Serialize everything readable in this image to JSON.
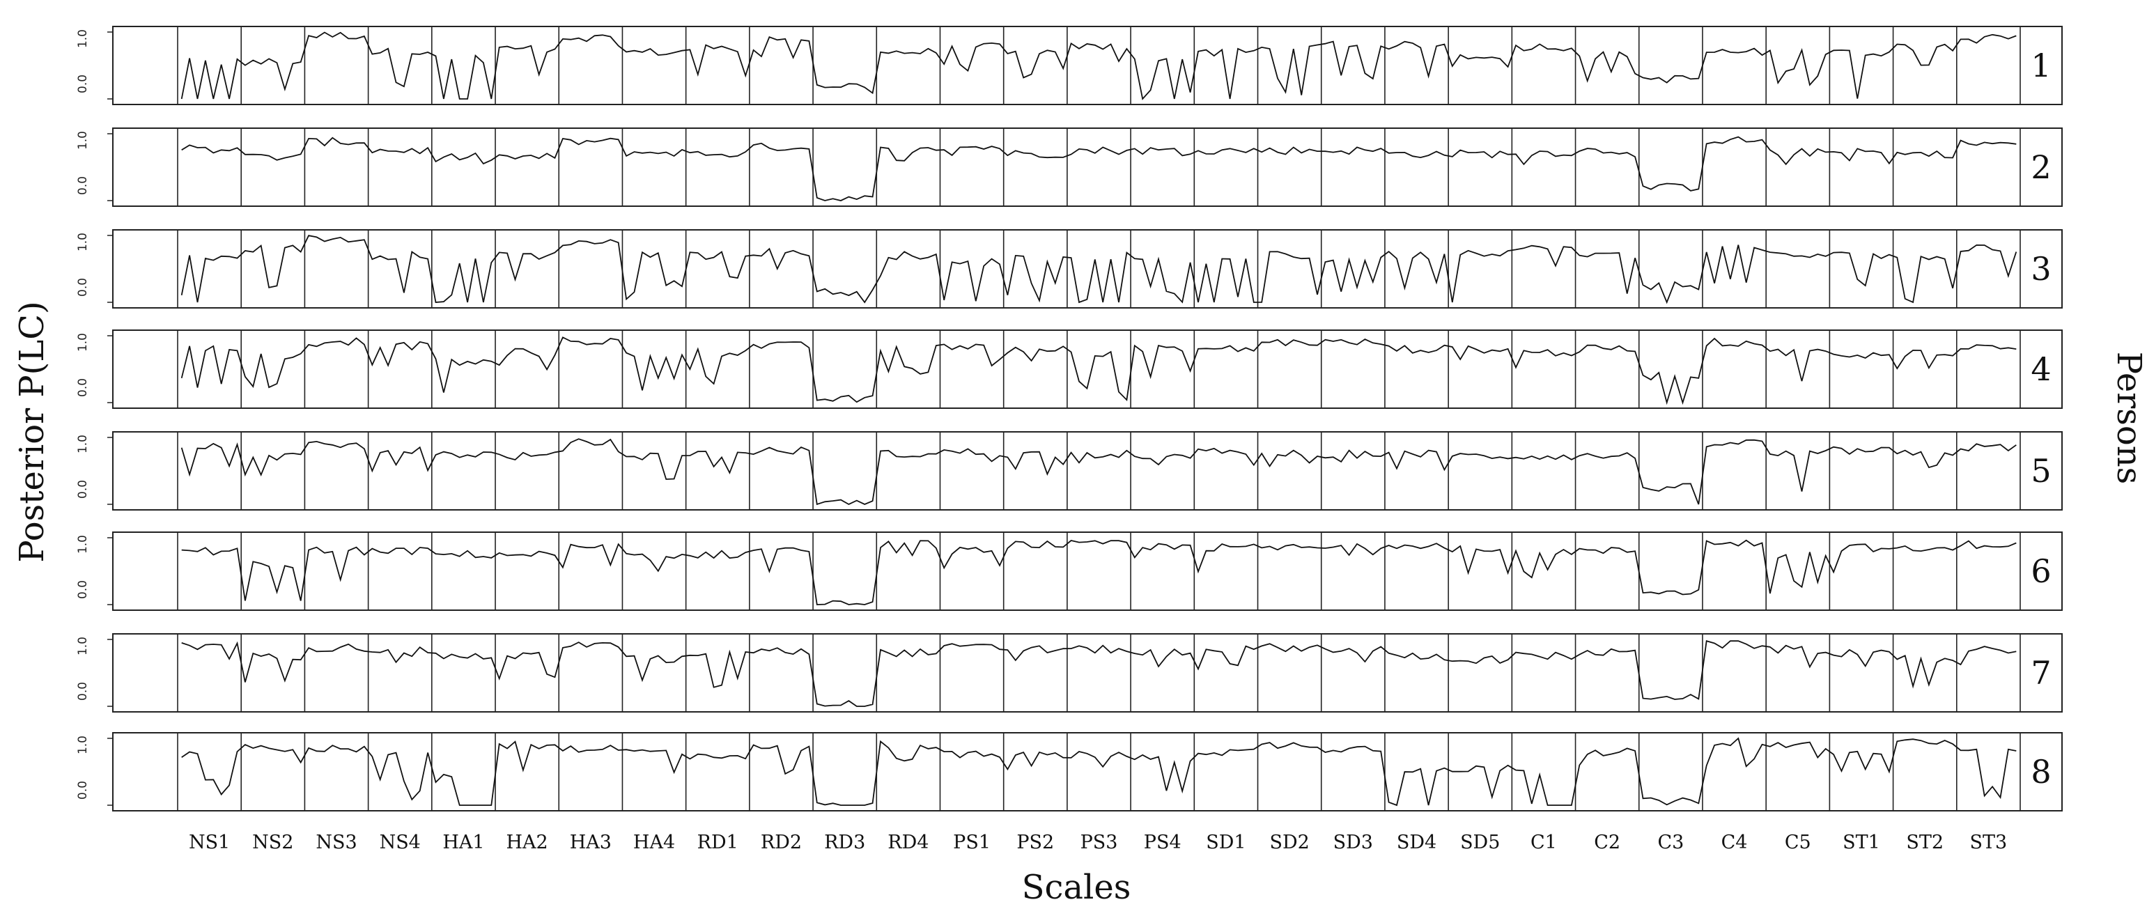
{
  "chart_data": {
    "type": "line",
    "ylabel": "Posterior P(LC)",
    "xlabel": "Scales",
    "right_label": "Persons",
    "ylim": [
      0,
      1
    ],
    "y_tick_labels": [
      "0.0",
      "1.0"
    ],
    "scales": [
      "NS1",
      "NS2",
      "NS3",
      "NS4",
      "HA1",
      "HA2",
      "HA3",
      "HA4",
      "RD1",
      "RD2",
      "RD3",
      "RD4",
      "PS1",
      "PS2",
      "PS3",
      "PS4",
      "SD1",
      "SD2",
      "SD3",
      "SD4",
      "SD5",
      "C1",
      "C2",
      "C3",
      "C4",
      "C5",
      "ST1",
      "ST2",
      "ST3"
    ],
    "person_labels": [
      "1",
      "2",
      "3",
      "4",
      "5",
      "6",
      "7",
      "8"
    ],
    "block_levels": [
      [
        0.55,
        0.55,
        0.95,
        0.7,
        0.6,
        0.75,
        0.92,
        0.7,
        0.75,
        0.9,
        0.2,
        0.7,
        0.8,
        0.7,
        0.78,
        0.6,
        0.7,
        0.75,
        0.8,
        0.8,
        0.65,
        0.78,
        0.65,
        0.3,
        0.7,
        0.7,
        0.7,
        0.78,
        0.95
      ],
      [
        0.78,
        0.65,
        0.88,
        0.75,
        0.65,
        0.65,
        0.88,
        0.72,
        0.7,
        0.8,
        0.03,
        0.75,
        0.8,
        0.7,
        0.75,
        0.75,
        0.75,
        0.75,
        0.75,
        0.7,
        0.7,
        0.72,
        0.75,
        0.2,
        0.9,
        0.72,
        0.72,
        0.7,
        0.85
      ],
      [
        0.65,
        0.8,
        0.95,
        0.7,
        0.6,
        0.7,
        0.9,
        0.7,
        0.7,
        0.75,
        0.15,
        0.7,
        0.6,
        0.65,
        0.7,
        0.65,
        0.6,
        0.7,
        0.65,
        0.7,
        0.75,
        0.8,
        0.7,
        0.25,
        0.8,
        0.7,
        0.7,
        0.7,
        0.8
      ],
      [
        0.8,
        0.7,
        0.92,
        0.85,
        0.6,
        0.75,
        0.92,
        0.7,
        0.75,
        0.85,
        0.05,
        0.8,
        0.85,
        0.8,
        0.75,
        0.8,
        0.8,
        0.9,
        0.9,
        0.8,
        0.8,
        0.75,
        0.8,
        0.4,
        0.9,
        0.75,
        0.7,
        0.75,
        0.85
      ],
      [
        0.85,
        0.72,
        0.88,
        0.8,
        0.75,
        0.72,
        0.92,
        0.72,
        0.75,
        0.8,
        0.02,
        0.75,
        0.78,
        0.75,
        0.75,
        0.7,
        0.78,
        0.75,
        0.75,
        0.75,
        0.72,
        0.72,
        0.72,
        0.25,
        0.92,
        0.75,
        0.8,
        0.75,
        0.85
      ],
      [
        0.8,
        0.6,
        0.8,
        0.8,
        0.75,
        0.75,
        0.85,
        0.72,
        0.75,
        0.85,
        0.0,
        0.9,
        0.8,
        0.9,
        0.9,
        0.85,
        0.85,
        0.85,
        0.85,
        0.9,
        0.85,
        0.8,
        0.8,
        0.2,
        0.92,
        0.75,
        0.85,
        0.82,
        0.9
      ],
      [
        0.9,
        0.75,
        0.88,
        0.85,
        0.75,
        0.75,
        0.92,
        0.7,
        0.8,
        0.82,
        0.03,
        0.8,
        0.88,
        0.85,
        0.85,
        0.8,
        0.85,
        0.88,
        0.85,
        0.75,
        0.7,
        0.75,
        0.8,
        0.15,
        0.92,
        0.85,
        0.8,
        0.7,
        0.85
      ],
      [
        0.75,
        0.85,
        0.85,
        0.75,
        0.4,
        0.9,
        0.85,
        0.8,
        0.75,
        0.85,
        0.0,
        0.9,
        0.75,
        0.75,
        0.75,
        0.7,
        0.8,
        0.9,
        0.85,
        0.55,
        0.55,
        0.5,
        0.8,
        0.05,
        0.95,
        0.9,
        0.75,
        0.95,
        0.8
      ]
    ],
    "block_dip": [
      [
        0.8,
        0.7,
        0.2,
        0.8,
        0.9,
        0.4,
        0.2,
        0.6,
        0.5,
        0.3,
        0.2,
        0.5,
        0.4,
        0.4,
        0.4,
        0.9,
        0.9,
        0.7,
        0.5,
        0.5,
        0.2,
        0.3,
        0.4,
        0.3,
        0.8,
        0.5,
        0.8,
        0.4,
        0.2
      ],
      [
        0.1,
        0.1,
        0.1,
        0.2,
        0.1,
        0.2,
        0.1,
        0.1,
        0.1,
        0.1,
        0.0,
        0.2,
        0.2,
        0.3,
        0.1,
        0.1,
        0.1,
        0.1,
        0.1,
        0.2,
        0.1,
        0.2,
        0.1,
        0.1,
        0.1,
        0.2,
        0.2,
        0.1,
        0.1
      ],
      [
        0.9,
        0.6,
        0.2,
        0.7,
        0.8,
        0.5,
        0.3,
        0.7,
        0.6,
        0.4,
        0.3,
        0.4,
        0.8,
        0.7,
        0.8,
        0.7,
        0.9,
        0.7,
        0.6,
        0.5,
        0.8,
        0.3,
        0.6,
        0.4,
        0.6,
        0.5,
        0.7,
        0.8,
        0.7
      ],
      [
        0.6,
        0.5,
        0.1,
        0.5,
        0.7,
        0.3,
        0.1,
        0.6,
        0.5,
        0.2,
        0.1,
        0.4,
        0.3,
        0.3,
        0.8,
        0.6,
        0.2,
        0.1,
        0.1,
        0.3,
        0.3,
        0.4,
        0.3,
        0.8,
        0.2,
        0.6,
        0.2,
        0.3,
        0.2
      ],
      [
        0.5,
        0.3,
        0.1,
        0.4,
        0.3,
        0.3,
        0.2,
        0.4,
        0.3,
        0.3,
        0.0,
        0.3,
        0.2,
        0.3,
        0.2,
        0.2,
        0.2,
        0.2,
        0.2,
        0.3,
        0.3,
        0.3,
        0.2,
        0.6,
        0.1,
        0.6,
        0.2,
        0.3,
        0.2
      ],
      [
        0.1,
        0.6,
        0.6,
        0.3,
        0.2,
        0.3,
        0.3,
        0.3,
        0.3,
        0.4,
        0.0,
        0.2,
        0.3,
        0.1,
        0.1,
        0.2,
        0.4,
        0.3,
        0.2,
        0.1,
        0.5,
        0.4,
        0.3,
        0.3,
        0.1,
        0.7,
        0.4,
        0.3,
        0.2
      ],
      [
        0.2,
        0.4,
        0.1,
        0.2,
        0.3,
        0.4,
        0.1,
        0.4,
        0.6,
        0.2,
        0.0,
        0.3,
        0.2,
        0.2,
        0.3,
        0.3,
        0.3,
        0.2,
        0.2,
        0.3,
        0.1,
        0.2,
        0.3,
        0.2,
        0.2,
        0.3,
        0.2,
        0.5,
        0.3
      ],
      [
        0.7,
        0.3,
        0.3,
        0.7,
        0.8,
        0.6,
        0.5,
        0.5,
        0.5,
        0.4,
        0.0,
        0.3,
        0.2,
        0.3,
        0.3,
        0.6,
        0.3,
        0.1,
        0.2,
        0.9,
        0.7,
        0.9,
        0.4,
        0.3,
        0.5,
        0.3,
        0.3,
        0.1,
        0.8
      ]
    ]
  }
}
